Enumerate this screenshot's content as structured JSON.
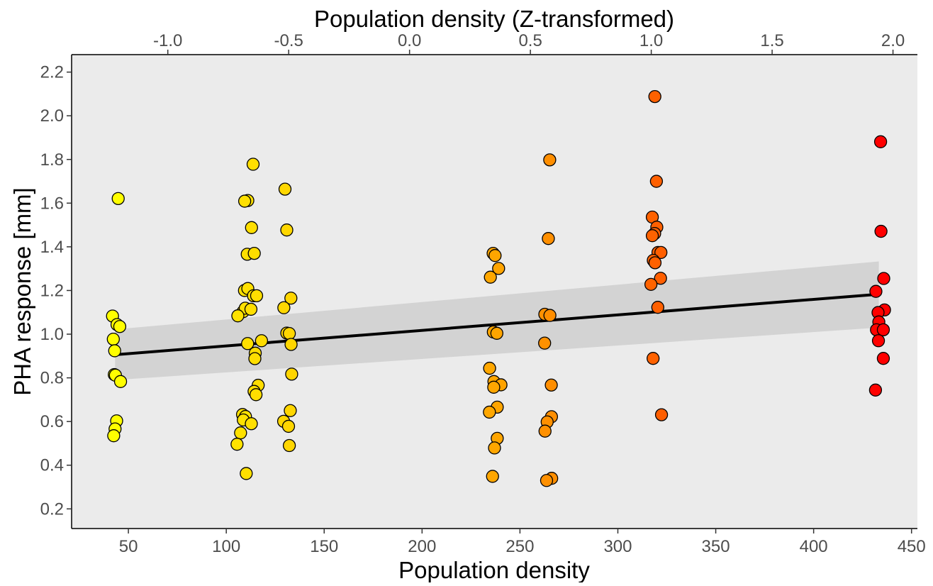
{
  "chart_data": {
    "type": "scatter",
    "title": "",
    "xlabel": "Population density",
    "ylabel": "PHA response [mm]",
    "top_xlabel": "Population density (Z-transformed)",
    "xlim": [
      21,
      453
    ],
    "ylim": [
      0.11,
      2.28
    ],
    "top_xlim": [
      -1.398,
      2.101
    ],
    "x_ticks": [
      50,
      100,
      150,
      200,
      250,
      300,
      350,
      400,
      450
    ],
    "x_tick_labels": [
      "50",
      "100",
      "150",
      "200",
      "250",
      "300",
      "350",
      "400",
      "450"
    ],
    "y_ticks": [
      0.2,
      0.4,
      0.6,
      0.8,
      1.0,
      1.2,
      1.4,
      1.6,
      1.8,
      2.0,
      2.2
    ],
    "y_tick_labels": [
      "0.2",
      "0.4",
      "0.6",
      "0.8",
      "1.0",
      "1.2",
      "1.4",
      "1.6",
      "1.8",
      "2.0",
      "2.2"
    ],
    "top_x_ticks": [
      -1.0,
      -0.5,
      0.0,
      0.5,
      1.0,
      1.5,
      2.0
    ],
    "top_x_tick_labels": [
      "-1.0",
      "-0.5",
      "0.0",
      "0.5",
      "1.0",
      "1.5",
      "2.0"
    ],
    "grid": false,
    "panel_background": "#ebebeb",
    "color_scale": {
      "low": "#ffff00",
      "mid": "#ffa500",
      "high": "#ff0000",
      "domain": [
        43,
        434
      ]
    },
    "regression": {
      "x": [
        43.2,
        433.3
      ],
      "y": [
        0.906,
        1.183
      ],
      "ci_lower": [
        0.79,
        1.03
      ],
      "ci_upper": [
        1.022,
        1.333
      ],
      "line_color": "#000000",
      "band_color": "#d3d3d3"
    },
    "points": [
      {
        "x": 41.9,
        "y": 1.083
      },
      {
        "x": 42.3,
        "y": 0.977
      },
      {
        "x": 43.0,
        "y": 0.924
      },
      {
        "x": 44.8,
        "y": 1.621
      },
      {
        "x": 44.2,
        "y": 1.044
      },
      {
        "x": 45.6,
        "y": 1.035
      },
      {
        "x": 42.8,
        "y": 0.815
      },
      {
        "x": 43.4,
        "y": 0.812
      },
      {
        "x": 46.0,
        "y": 0.783
      },
      {
        "x": 44.0,
        "y": 0.603
      },
      {
        "x": 43.2,
        "y": 0.566
      },
      {
        "x": 42.5,
        "y": 0.535
      },
      {
        "x": 111.0,
        "y": 1.612
      },
      {
        "x": 113.7,
        "y": 1.778
      },
      {
        "x": 109.4,
        "y": 1.609
      },
      {
        "x": 112.9,
        "y": 1.488
      },
      {
        "x": 110.7,
        "y": 1.366
      },
      {
        "x": 114.3,
        "y": 1.37
      },
      {
        "x": 109.3,
        "y": 1.2
      },
      {
        "x": 111.0,
        "y": 1.209
      },
      {
        "x": 113.9,
        "y": 1.176
      },
      {
        "x": 115.5,
        "y": 1.176
      },
      {
        "x": 108.6,
        "y": 1.103
      },
      {
        "x": 109.7,
        "y": 1.119
      },
      {
        "x": 112.6,
        "y": 1.114
      },
      {
        "x": 105.9,
        "y": 1.084
      },
      {
        "x": 118.0,
        "y": 0.97
      },
      {
        "x": 110.9,
        "y": 0.957
      },
      {
        "x": 114.8,
        "y": 0.913
      },
      {
        "x": 114.6,
        "y": 0.888
      },
      {
        "x": 116.3,
        "y": 0.766
      },
      {
        "x": 114.2,
        "y": 0.738
      },
      {
        "x": 115.2,
        "y": 0.723
      },
      {
        "x": 108.3,
        "y": 0.632
      },
      {
        "x": 109.8,
        "y": 0.623
      },
      {
        "x": 108.7,
        "y": 0.607
      },
      {
        "x": 112.8,
        "y": 0.59
      },
      {
        "x": 107.3,
        "y": 0.548
      },
      {
        "x": 105.5,
        "y": 0.496
      },
      {
        "x": 110.2,
        "y": 0.362
      },
      {
        "x": 130.0,
        "y": 1.664
      },
      {
        "x": 130.9,
        "y": 1.477
      },
      {
        "x": 133.0,
        "y": 1.165
      },
      {
        "x": 129.4,
        "y": 1.121
      },
      {
        "x": 130.9,
        "y": 1.005
      },
      {
        "x": 132.2,
        "y": 1.003
      },
      {
        "x": 133.1,
        "y": 0.953
      },
      {
        "x": 133.4,
        "y": 0.817
      },
      {
        "x": 132.7,
        "y": 0.65
      },
      {
        "x": 129.3,
        "y": 0.601
      },
      {
        "x": 131.8,
        "y": 0.578
      },
      {
        "x": 132.2,
        "y": 0.49
      },
      {
        "x": 236.3,
        "y": 1.37
      },
      {
        "x": 237.3,
        "y": 1.36
      },
      {
        "x": 239.1,
        "y": 1.301
      },
      {
        "x": 234.9,
        "y": 1.261
      },
      {
        "x": 236.4,
        "y": 1.01
      },
      {
        "x": 238.2,
        "y": 1.004
      },
      {
        "x": 234.5,
        "y": 0.844
      },
      {
        "x": 236.7,
        "y": 0.783
      },
      {
        "x": 240.3,
        "y": 0.768
      },
      {
        "x": 236.6,
        "y": 0.757
      },
      {
        "x": 238.4,
        "y": 0.666
      },
      {
        "x": 234.4,
        "y": 0.643
      },
      {
        "x": 238.4,
        "y": 0.523
      },
      {
        "x": 237.0,
        "y": 0.479
      },
      {
        "x": 236.0,
        "y": 0.349
      },
      {
        "x": 265.2,
        "y": 1.798
      },
      {
        "x": 264.5,
        "y": 1.438
      },
      {
        "x": 262.7,
        "y": 1.091
      },
      {
        "x": 265.3,
        "y": 1.086
      },
      {
        "x": 262.6,
        "y": 0.959
      },
      {
        "x": 266.0,
        "y": 0.767
      },
      {
        "x": 266.1,
        "y": 0.622
      },
      {
        "x": 263.9,
        "y": 0.598
      },
      {
        "x": 262.8,
        "y": 0.556
      },
      {
        "x": 266.2,
        "y": 0.34
      },
      {
        "x": 263.6,
        "y": 0.33
      },
      {
        "x": 318.9,
        "y": 2.088
      },
      {
        "x": 319.7,
        "y": 1.7
      },
      {
        "x": 317.6,
        "y": 1.536
      },
      {
        "x": 319.9,
        "y": 1.49
      },
      {
        "x": 318.8,
        "y": 1.461
      },
      {
        "x": 317.6,
        "y": 1.451
      },
      {
        "x": 320.5,
        "y": 1.374
      },
      {
        "x": 322.0,
        "y": 1.374
      },
      {
        "x": 318.1,
        "y": 1.338
      },
      {
        "x": 319.0,
        "y": 1.327
      },
      {
        "x": 321.8,
        "y": 1.256
      },
      {
        "x": 316.9,
        "y": 1.228
      },
      {
        "x": 320.4,
        "y": 1.123
      },
      {
        "x": 318.0,
        "y": 0.889
      },
      {
        "x": 322.3,
        "y": 0.631
      },
      {
        "x": 434.2,
        "y": 1.881
      },
      {
        "x": 434.4,
        "y": 1.471
      },
      {
        "x": 435.8,
        "y": 1.255
      },
      {
        "x": 431.8,
        "y": 1.196
      },
      {
        "x": 436.2,
        "y": 1.111
      },
      {
        "x": 432.9,
        "y": 1.099
      },
      {
        "x": 433.3,
        "y": 1.056
      },
      {
        "x": 432.1,
        "y": 1.02
      },
      {
        "x": 435.6,
        "y": 1.02
      },
      {
        "x": 433.1,
        "y": 0.97
      },
      {
        "x": 435.6,
        "y": 0.889
      },
      {
        "x": 431.6,
        "y": 0.744
      }
    ]
  }
}
